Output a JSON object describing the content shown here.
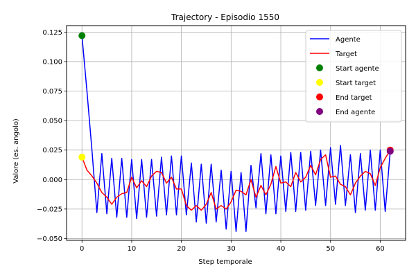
{
  "chart_data": {
    "type": "line",
    "title": "Trajectory - Episodio 1550",
    "xlabel": "Step temporale",
    "ylabel": "Valore (es. angolo)",
    "xlim": [
      -3.1,
      65.1
    ],
    "ylim": [
      -0.0515,
      0.1305
    ],
    "x_ticks": [
      0,
      10,
      20,
      30,
      40,
      50,
      60
    ],
    "y_ticks": [
      -0.05,
      -0.025,
      0.0,
      0.025,
      0.05,
      0.075,
      0.1,
      0.125
    ],
    "y_tick_labels": [
      "−0.050",
      "−0.025",
      "0.000",
      "0.025",
      "0.050",
      "0.075",
      "0.100",
      "0.125"
    ],
    "grid": true,
    "legend_position": "top-right",
    "series": [
      {
        "name": "Agente",
        "color": "#0000ff",
        "x": [
          0,
          1,
          2,
          3,
          4,
          5,
          6,
          7,
          8,
          9,
          10,
          11,
          12,
          13,
          14,
          15,
          16,
          17,
          18,
          19,
          20,
          21,
          22,
          23,
          24,
          25,
          26,
          27,
          28,
          29,
          30,
          31,
          32,
          33,
          34,
          35,
          36,
          37,
          38,
          39,
          40,
          41,
          42,
          43,
          44,
          45,
          46,
          47,
          48,
          49,
          50,
          51,
          52,
          53,
          54,
          55,
          56,
          57,
          58,
          59,
          60,
          61,
          62
        ],
        "y": [
          0.122,
          0.075,
          0.025,
          -0.028,
          0.022,
          -0.029,
          0.018,
          -0.032,
          0.018,
          -0.032,
          0.017,
          -0.033,
          0.017,
          -0.032,
          0.017,
          -0.031,
          0.019,
          -0.03,
          0.02,
          -0.03,
          0.02,
          -0.03,
          0.014,
          -0.036,
          0.013,
          -0.037,
          0.013,
          -0.036,
          0.008,
          -0.042,
          0.007,
          -0.044,
          0.006,
          -0.044,
          0.012,
          -0.024,
          0.022,
          -0.029,
          0.021,
          -0.029,
          0.02,
          -0.027,
          0.023,
          -0.027,
          0.023,
          -0.026,
          0.024,
          -0.022,
          0.025,
          -0.022,
          0.027,
          -0.021,
          0.029,
          -0.022,
          0.021,
          -0.028,
          0.022,
          -0.026,
          0.025,
          -0.026,
          0.025,
          -0.027,
          0.024
        ]
      },
      {
        "name": "Target",
        "color": "#ff0000",
        "x": [
          0,
          1,
          2,
          3,
          4,
          5,
          6,
          7,
          8,
          9,
          10,
          11,
          12,
          13,
          14,
          15,
          16,
          17,
          18,
          19,
          20,
          21,
          22,
          23,
          24,
          25,
          26,
          27,
          28,
          29,
          30,
          31,
          32,
          33,
          34,
          35,
          36,
          37,
          38,
          39,
          40,
          41,
          42,
          43,
          44,
          45,
          46,
          47,
          48,
          49,
          50,
          51,
          52,
          53,
          54,
          55,
          56,
          57,
          58,
          59,
          60,
          61,
          62
        ],
        "y": [
          0.019,
          0.008,
          0.003,
          -0.003,
          -0.011,
          -0.015,
          -0.021,
          -0.015,
          -0.012,
          -0.011,
          0.002,
          -0.007,
          -0.001,
          -0.006,
          0.003,
          0.007,
          0.006,
          -0.003,
          0.002,
          -0.008,
          -0.008,
          -0.022,
          -0.026,
          -0.022,
          -0.026,
          -0.021,
          -0.011,
          -0.025,
          -0.022,
          -0.025,
          -0.019,
          -0.009,
          -0.01,
          -0.013,
          0.0,
          -0.015,
          -0.005,
          -0.013,
          -0.004,
          0.011,
          -0.003,
          -0.002,
          -0.006,
          0.006,
          -0.002,
          0.002,
          0.012,
          0.004,
          0.017,
          0.021,
          0.002,
          0.003,
          -0.004,
          -0.006,
          -0.013,
          -0.003,
          0.003,
          0.007,
          0.005,
          -0.005,
          0.01,
          0.018,
          0.025
        ]
      }
    ],
    "markers": [
      {
        "name": "Start agente",
        "color": "#008000",
        "x": 0,
        "y": 0.122
      },
      {
        "name": "Start target",
        "color": "#ffff00",
        "x": 0,
        "y": 0.019
      },
      {
        "name": "End target",
        "color": "#ff0000",
        "x": 62,
        "y": 0.025
      },
      {
        "name": "End agente",
        "color": "#800080",
        "x": 62,
        "y": 0.024
      }
    ],
    "legend": [
      {
        "label": "Agente",
        "kind": "line",
        "color": "#0000ff"
      },
      {
        "label": "Target",
        "kind": "line",
        "color": "#ff0000"
      },
      {
        "label": "Start agente",
        "kind": "marker",
        "color": "#008000"
      },
      {
        "label": "Start target",
        "kind": "marker",
        "color": "#ffff00"
      },
      {
        "label": "End target",
        "kind": "marker",
        "color": "#ff0000"
      },
      {
        "label": "End agente",
        "kind": "marker",
        "color": "#800080"
      }
    ]
  }
}
